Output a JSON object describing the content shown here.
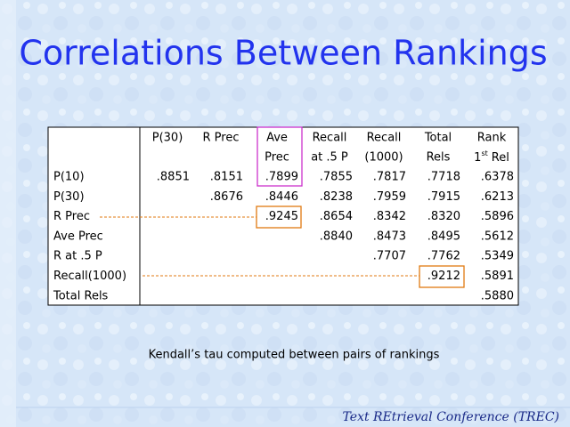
{
  "title": "Correlations Between Rankings",
  "table": {
    "columns": [
      {
        "lines": [
          "P(30)"
        ]
      },
      {
        "lines": [
          "R Prec"
        ]
      },
      {
        "lines": [
          "Ave",
          "Prec"
        ]
      },
      {
        "lines": [
          "Recall",
          "at .5 P"
        ]
      },
      {
        "lines": [
          "Recall",
          "(1000)"
        ]
      },
      {
        "lines": [
          "Total",
          "Rels"
        ]
      },
      {
        "lines": [
          "Rank"
        ],
        "ordinal": "1",
        "suffix": "st",
        "rest": "Rel"
      }
    ],
    "rows": [
      {
        "label": "P(10)",
        "values": [
          ".8851",
          ".8151",
          ".7899",
          ".7855",
          ".7817",
          ".7718",
          ".6378"
        ]
      },
      {
        "label": "P(30)",
        "values": [
          ".8676",
          ".8446",
          ".8238",
          ".7959",
          ".7915",
          ".6213"
        ]
      },
      {
        "label": "R Prec",
        "values": [
          ".9245",
          ".8654",
          ".8342",
          ".8320",
          ".5896"
        ]
      },
      {
        "label": "Ave Prec",
        "values": [
          ".8840",
          ".8473",
          ".8495",
          ".5612"
        ]
      },
      {
        "label": "R at .5 P",
        "values": [
          ".7707",
          ".7762",
          ".5349"
        ]
      },
      {
        "label": "Recall(1000)",
        "values": [
          ".9212",
          ".5891"
        ]
      },
      {
        "label": "Total Rels",
        "values": [
          ".5880"
        ]
      }
    ]
  },
  "caption": "Kendall’s tau computed between pairs of rankings",
  "footer": "Text REtrieval Conference (TREC)"
}
